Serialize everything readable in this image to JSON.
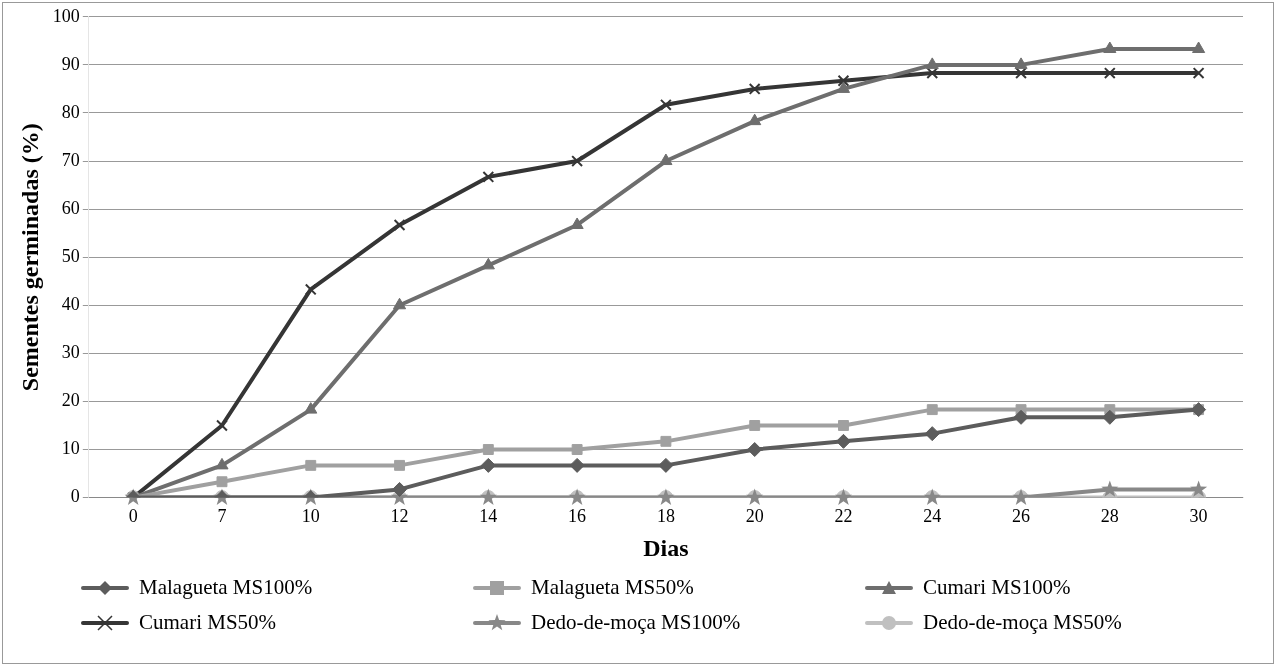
{
  "chart_data": {
    "type": "line",
    "xlabel": "Dias",
    "ylabel": "Sementes germinadas (%)",
    "categories": [
      "0",
      "7",
      "10",
      "12",
      "14",
      "16",
      "18",
      "20",
      "22",
      "24",
      "26",
      "28",
      "30"
    ],
    "ylim": [
      0,
      100
    ],
    "yticks": [
      0,
      10,
      20,
      30,
      40,
      50,
      60,
      70,
      80,
      90,
      100
    ],
    "grid": "y",
    "legend": "bottom",
    "series": [
      {
        "name": "Malagueta MS100%",
        "color": "#5c5c5c",
        "marker": "diamond",
        "values": [
          0,
          0,
          0,
          1.7,
          6.7,
          6.7,
          6.7,
          10,
          11.7,
          13.3,
          16.7,
          16.7,
          18.3
        ]
      },
      {
        "name": "Malagueta MS50%",
        "color": "#a0a0a0",
        "marker": "square",
        "values": [
          0,
          3.3,
          6.7,
          6.7,
          10,
          10,
          11.7,
          15,
          15,
          18.3,
          18.3,
          18.3,
          18.3
        ]
      },
      {
        "name": "Cumari MS100%",
        "color": "#6e6e6e",
        "marker": "triangle",
        "values": [
          0,
          6.7,
          18.3,
          40,
          48.3,
          56.7,
          70,
          78.3,
          85,
          90,
          90,
          93.3,
          93.3
        ]
      },
      {
        "name": "Cumari MS50%",
        "color": "#353535",
        "marker": "cross",
        "values": [
          0,
          15,
          43.3,
          56.7,
          66.7,
          70,
          81.7,
          85,
          86.7,
          88.3,
          88.3,
          88.3,
          88.3
        ]
      },
      {
        "name": "Dedo-de-moça MS100%",
        "color": "#888888",
        "marker": "star",
        "values": [
          0,
          0,
          0,
          0,
          0,
          0,
          0,
          0,
          0,
          0,
          0,
          1.7,
          1.7
        ]
      },
      {
        "name": "Dedo-de-moça MS50%",
        "color": "#c0c0c0",
        "marker": "circle",
        "values": [
          0,
          0,
          0,
          0,
          0,
          0,
          0,
          0,
          0,
          0,
          0,
          0,
          0
        ]
      }
    ]
  }
}
